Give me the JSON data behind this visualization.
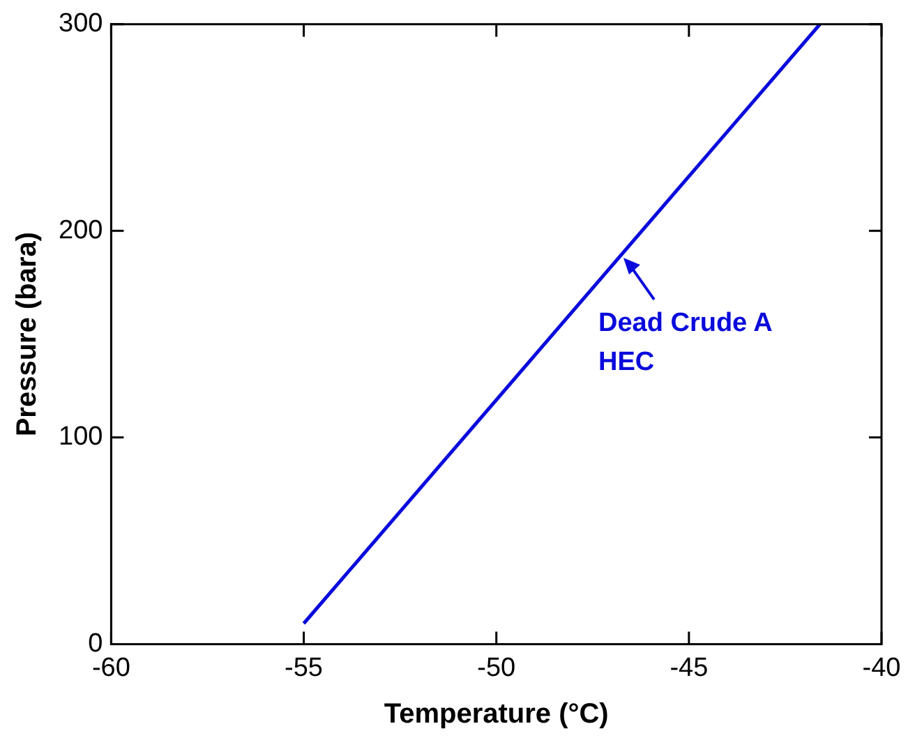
{
  "chart_data": {
    "type": "line",
    "xlabel": "Temperature (°C)",
    "ylabel": "Pressure (bara)",
    "series": [
      {
        "color": "#0a0adc",
        "x": [
          -55,
          -41.6
        ],
        "values": [
          10,
          300
        ]
      }
    ],
    "xlim": [
      -60,
      -40
    ],
    "xticks": [
      -60,
      -55,
      -50,
      -45,
      -40
    ],
    "ylim": [
      0,
      300
    ],
    "yticks": [
      0,
      100,
      200,
      300
    ],
    "grid": false,
    "legend": false,
    "marker": "none",
    "line_style": "solid",
    "annotations": [
      {
        "text": "Dead Crude A\nHEC",
        "x": -46.7,
        "y": 187
      }
    ]
  }
}
